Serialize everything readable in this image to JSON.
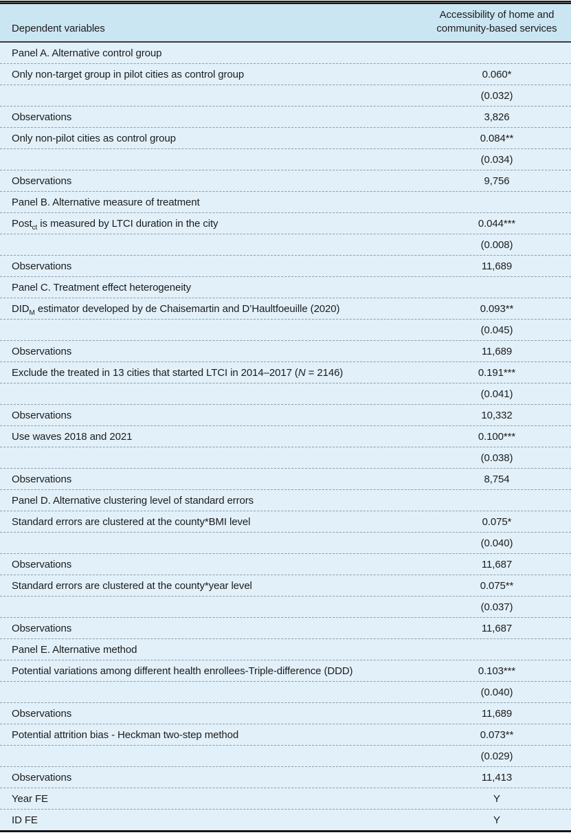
{
  "colors": {
    "header_bg": "#cbe6f3",
    "body_bg": "#e2f0f9",
    "rule_dark": "#161616",
    "dashed_separator": "#8f9aa4",
    "text": "#1c1c1c"
  },
  "table": {
    "header": {
      "dependent_variables": "Dependent variables",
      "outcome": "Accessibility of home and community-based services"
    },
    "rows": [
      {
        "type": "panel",
        "label": "Panel A. Alternative control group",
        "value": ""
      },
      {
        "type": "data",
        "label": "Only non-target group in pilot cities as control group",
        "value": "0.060*"
      },
      {
        "type": "data",
        "label": "",
        "value": "(0.032)"
      },
      {
        "type": "data",
        "label": "Observations",
        "value": "3,826"
      },
      {
        "type": "data",
        "label": "Only non-pilot cities as control group",
        "value": "0.084**"
      },
      {
        "type": "data",
        "label": "",
        "value": "(0.034)"
      },
      {
        "type": "data",
        "label": "Observations",
        "value": "9,756"
      },
      {
        "type": "panel",
        "label": "Panel B. Alternative measure of treatment",
        "value": ""
      },
      {
        "type": "data",
        "label": [
          "Post",
          {
            "sub": "ct"
          },
          " is measured by LTCI duration in the city"
        ],
        "value": "0.044***"
      },
      {
        "type": "data",
        "label": "",
        "value": "(0.008)"
      },
      {
        "type": "data",
        "label": "Observations",
        "value": "11,689"
      },
      {
        "type": "panel",
        "label": "Panel C. Treatment effect heterogeneity",
        "value": ""
      },
      {
        "type": "data",
        "label": [
          "DID",
          {
            "sub": "M"
          },
          " estimator developed by de Chaisemartin and D’Haultfoeuille (2020)"
        ],
        "value": "0.093**"
      },
      {
        "type": "data",
        "label": "",
        "value": "(0.045)"
      },
      {
        "type": "data",
        "label": "Observations",
        "value": "11,689"
      },
      {
        "type": "data",
        "label": [
          "Exclude the treated in 13 cities that started LTCI in 2014–2017 (",
          {
            "i": "N"
          },
          " = 2146)"
        ],
        "value": "0.191***"
      },
      {
        "type": "data",
        "label": "",
        "value": "(0.041)"
      },
      {
        "type": "data",
        "label": "Observations",
        "value": "10,332"
      },
      {
        "type": "data",
        "label": "Use waves 2018 and 2021",
        "value": "0.100***"
      },
      {
        "type": "data",
        "label": "",
        "value": "(0.038)"
      },
      {
        "type": "data",
        "label": "Observations",
        "value": "8,754"
      },
      {
        "type": "panel",
        "label": "Panel D. Alternative clustering level of standard errors",
        "value": ""
      },
      {
        "type": "data",
        "label": "Standard errors are clustered at the county*BMI level",
        "value": "0.075*"
      },
      {
        "type": "data",
        "label": "",
        "value": "(0.040)"
      },
      {
        "type": "data",
        "label": "Observations",
        "value": "11,687"
      },
      {
        "type": "data",
        "label": "Standard errors are clustered at the county*year level",
        "value": "0.075**"
      },
      {
        "type": "data",
        "label": "",
        "value": "(0.037)"
      },
      {
        "type": "data",
        "label": "Observations",
        "value": "11,687"
      },
      {
        "type": "panel",
        "label": "Panel E. Alternative method",
        "value": ""
      },
      {
        "type": "data",
        "label": "Potential variations among different health enrollees-Triple-difference (DDD)",
        "value": "0.103***"
      },
      {
        "type": "data",
        "label": "",
        "value": "(0.040)"
      },
      {
        "type": "data",
        "label": "Observations",
        "value": "11,689"
      },
      {
        "type": "data",
        "label": "Potential attrition bias - Heckman two-step method",
        "value": "0.073**"
      },
      {
        "type": "data",
        "label": "",
        "value": "(0.029)"
      },
      {
        "type": "data",
        "label": "Observations",
        "value": "11,413"
      },
      {
        "type": "data",
        "label": "Year FE",
        "value": "Y"
      },
      {
        "type": "data",
        "label": "ID FE",
        "value": "Y"
      }
    ]
  }
}
